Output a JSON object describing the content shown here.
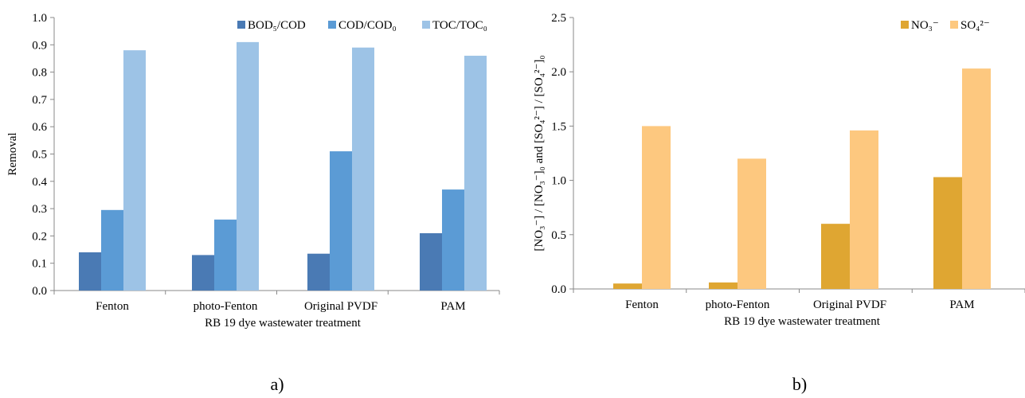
{
  "chart_data": [
    {
      "type": "bar",
      "panel_label": "a)",
      "categories": [
        "Fenton",
        "photo-Fenton",
        "Original PVDF",
        "PAM"
      ],
      "xlabel": "RB 19 dye wastewater treatment",
      "ylabel": "Removal",
      "ylim": [
        0,
        1.0
      ],
      "yticks": [
        "0.0",
        "0.1",
        "0.2",
        "0.3",
        "0.4",
        "0.5",
        "0.6",
        "0.7",
        "0.8",
        "0.9",
        "1.0"
      ],
      "ytick_values": [
        0,
        0.1,
        0.2,
        0.3,
        0.4,
        0.5,
        0.6,
        0.7,
        0.8,
        0.9,
        1.0
      ],
      "legend_position": "top-right",
      "grid": false,
      "series": [
        {
          "name": "BOD₅/COD",
          "color": "#4a7ab4",
          "values": [
            0.14,
            0.13,
            0.135,
            0.21
          ]
        },
        {
          "name": "COD/COD₀",
          "color": "#5b9bd5",
          "values": [
            0.295,
            0.26,
            0.51,
            0.37
          ]
        },
        {
          "name": "TOC/TOC₀",
          "color": "#9dc3e6",
          "values": [
            0.88,
            0.91,
            0.89,
            0.86
          ]
        }
      ]
    },
    {
      "type": "bar",
      "panel_label": "b)",
      "categories": [
        "Fenton",
        "photo-Fenton",
        "Original PVDF",
        "PAM"
      ],
      "xlabel": "RB 19 dye wastewater treatment",
      "ylabel": "[NO₃⁻] / [NO₃⁻]₀ and [SO₄²⁻] / [SO₄²⁻]₀",
      "ylim": [
        0,
        2.5
      ],
      "yticks": [
        "0.0",
        "0.5",
        "1.0",
        "1.5",
        "2.0",
        "2.5"
      ],
      "ytick_values": [
        0,
        0.5,
        1.0,
        1.5,
        2.0,
        2.5
      ],
      "legend_position": "top-right",
      "grid": false,
      "series": [
        {
          "name": "NO₃⁻",
          "color": "#dfa632",
          "values": [
            0.05,
            0.06,
            0.6,
            1.03
          ]
        },
        {
          "name": "SO₄²⁻",
          "color": "#fdc87f",
          "values": [
            1.5,
            1.2,
            1.46,
            2.03
          ]
        }
      ]
    }
  ]
}
